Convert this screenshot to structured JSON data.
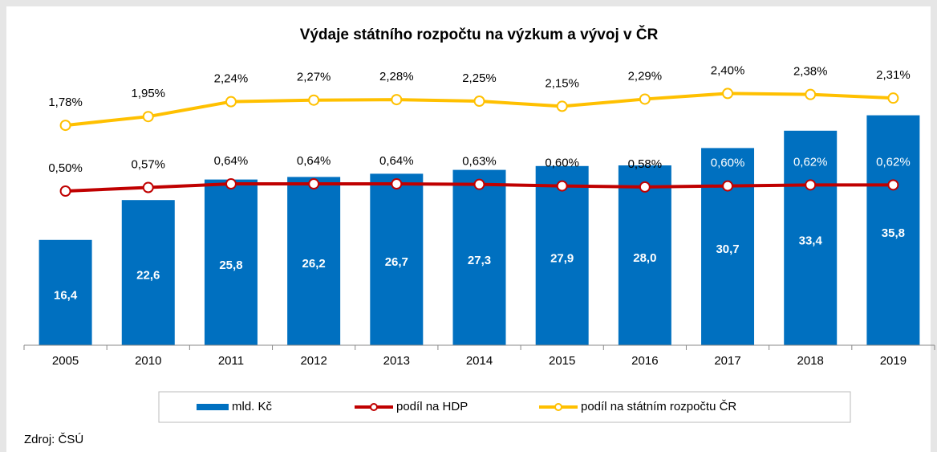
{
  "chart_data": {
    "type": "bar",
    "title": "Výdaje státního rozpočtu na výzkum a vývoj v ČR",
    "categories": [
      "2005",
      "2010",
      "2011",
      "2012",
      "2013",
      "2014",
      "2015",
      "2016",
      "2017",
      "2018",
      "2019"
    ],
    "series": [
      {
        "name": "mld. Kč",
        "type": "bar",
        "color": "#0070c0",
        "values": [
          16.4,
          22.6,
          25.8,
          26.2,
          26.7,
          27.3,
          27.9,
          28.0,
          30.7,
          33.4,
          35.8
        ],
        "value_labels": [
          "16,4",
          "22,6",
          "25,8",
          "26,2",
          "26,7",
          "27,3",
          "27,9",
          "28,0",
          "30,7",
          "33,4",
          "35,8"
        ]
      },
      {
        "name": "podíl na HDP",
        "type": "line",
        "axis": "y2",
        "color": "#c00000",
        "values": [
          0.5,
          0.57,
          0.64,
          0.64,
          0.64,
          0.63,
          0.6,
          0.58,
          0.6,
          0.62,
          0.62
        ],
        "value_labels": [
          "0,50%",
          "0,57%",
          "0,64%",
          "0,64%",
          "0,64%",
          "0,63%",
          "0,60%",
          "0,58%",
          "0,60%",
          "0,62%",
          "0,62%"
        ]
      },
      {
        "name": "podíl na státním rozpočtu ČR",
        "type": "line",
        "axis": "y2",
        "color": "#ffc000",
        "values": [
          1.78,
          1.95,
          2.24,
          2.27,
          2.28,
          2.25,
          2.15,
          2.29,
          2.4,
          2.38,
          2.31
        ],
        "value_labels": [
          "1,78%",
          "1,95%",
          "2,24%",
          "2,27%",
          "2,28%",
          "2,25%",
          "2,15%",
          "2,29%",
          "2,40%",
          "2,38%",
          "2,31%"
        ]
      }
    ],
    "ylim": [
      0,
      40
    ],
    "y2lim": [
      -2.5,
      2.5
    ],
    "legend": "bottom",
    "source": "Zdroj: ČSÚ"
  }
}
